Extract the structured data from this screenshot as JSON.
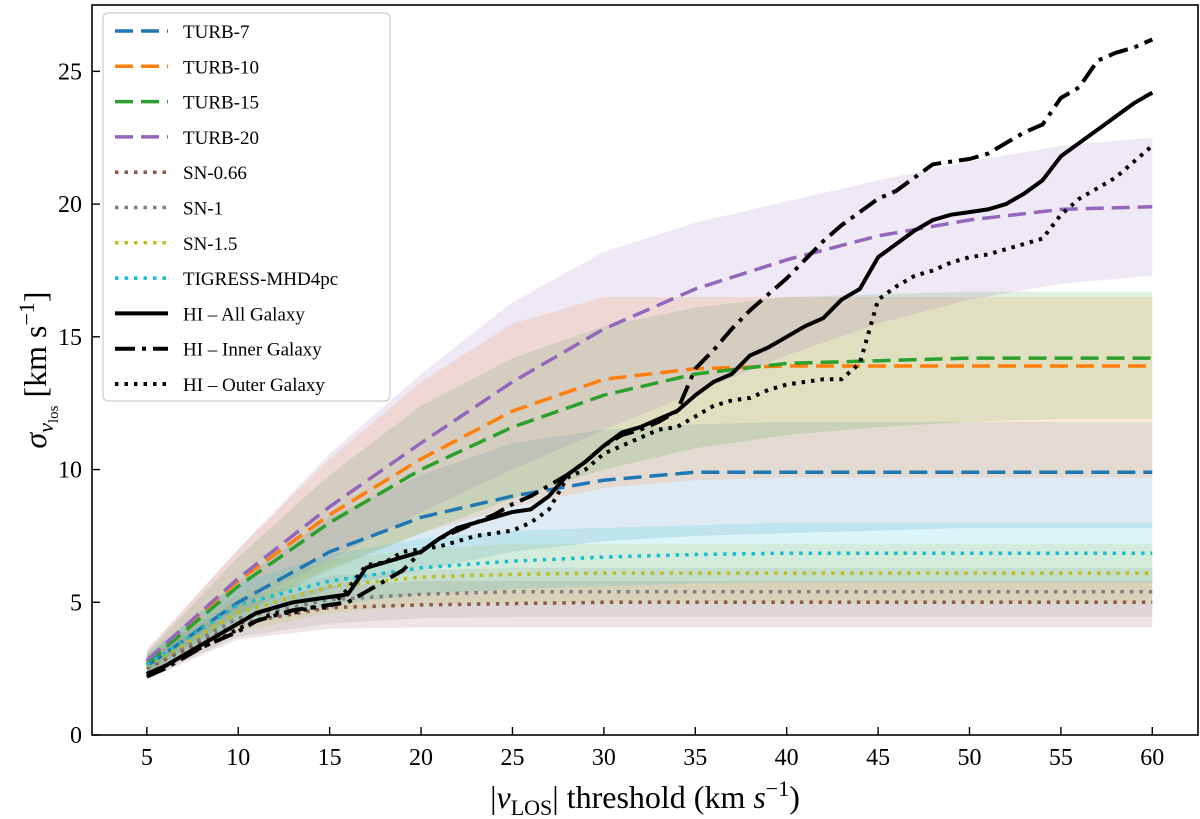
{
  "chart_data": {
    "type": "line",
    "title": "",
    "xlabel_parts": [
      "|",
      "v",
      "LOS",
      "| threshold (km ",
      "s",
      "−1",
      ")"
    ],
    "ylabel_parts": [
      "σ",
      "v",
      "los",
      " [km s",
      "−1",
      "]"
    ],
    "xlim": [
      2,
      62.5
    ],
    "ylim": [
      0,
      27.5
    ],
    "xticks": [
      5,
      10,
      15,
      20,
      25,
      30,
      35,
      40,
      45,
      50,
      55,
      60
    ],
    "yticks": [
      0,
      5,
      10,
      15,
      20,
      25
    ],
    "legend_position": "top-left",
    "series": [
      {
        "name": "TURB-7",
        "style": "dashed",
        "color": "#1f77b4",
        "x": [
          5,
          10,
          15,
          20,
          25,
          30,
          35,
          40,
          45,
          50,
          55,
          60
        ],
        "y": [
          2.6,
          5.0,
          6.9,
          8.2,
          9.0,
          9.6,
          9.9,
          9.9,
          9.9,
          9.9,
          9.9,
          9.9
        ],
        "band": {
          "lower": [
            2.2,
            4.2,
            5.5,
            6.2,
            6.9,
            7.3,
            7.5,
            7.6,
            7.7,
            7.8,
            7.8,
            7.8
          ],
          "upper": [
            3.0,
            5.8,
            8.2,
            9.8,
            11.0,
            11.5,
            11.7,
            11.8,
            11.8,
            11.8,
            11.8,
            11.8
          ]
        }
      },
      {
        "name": "TURB-10",
        "style": "dashed",
        "color": "#ff7f0e",
        "x": [
          5,
          10,
          15,
          20,
          25,
          30,
          35,
          40,
          45,
          50,
          55,
          60
        ],
        "y": [
          2.8,
          5.8,
          8.3,
          10.4,
          12.2,
          13.4,
          13.8,
          13.9,
          13.9,
          13.9,
          13.9,
          13.9
        ],
        "band": {
          "lower": [
            2.4,
            4.6,
            6.3,
            7.6,
            8.6,
            9.3,
            9.6,
            9.7,
            9.7,
            9.7,
            9.7,
            9.7
          ],
          "upper": [
            3.2,
            7.0,
            10.4,
            13.3,
            15.5,
            16.5,
            16.5,
            16.5,
            16.5,
            16.5,
            16.5,
            16.5
          ]
        }
      },
      {
        "name": "TURB-15",
        "style": "dashed",
        "color": "#2ca02c",
        "x": [
          5,
          10,
          15,
          20,
          25,
          30,
          35,
          40,
          45,
          50,
          55,
          60
        ],
        "y": [
          2.7,
          5.6,
          8.0,
          10.0,
          11.6,
          12.8,
          13.6,
          14.0,
          14.1,
          14.2,
          14.2,
          14.2
        ],
        "band": {
          "lower": [
            2.3,
            4.5,
            6.2,
            7.6,
            8.9,
            10.0,
            10.8,
            11.3,
            11.6,
            11.8,
            11.9,
            11.9
          ],
          "upper": [
            3.1,
            6.7,
            9.8,
            12.4,
            14.2,
            15.4,
            16.1,
            16.5,
            16.6,
            16.7,
            16.7,
            16.7
          ]
        }
      },
      {
        "name": "TURB-20",
        "style": "dashed",
        "color": "#9467bd",
        "x": [
          5,
          10,
          15,
          20,
          25,
          30,
          35,
          40,
          45,
          50,
          55,
          60
        ],
        "y": [
          2.8,
          5.9,
          8.6,
          11.0,
          13.3,
          15.3,
          16.8,
          17.9,
          18.8,
          19.4,
          19.8,
          19.9
        ],
        "band": {
          "lower": [
            2.4,
            4.8,
            6.6,
            8.4,
            10.0,
            11.5,
            12.9,
            14.3,
            15.5,
            16.4,
            17.0,
            17.3
          ],
          "upper": [
            3.2,
            7.0,
            10.6,
            13.6,
            16.3,
            18.2,
            19.3,
            20.1,
            20.9,
            21.6,
            22.2,
            22.5
          ]
        }
      },
      {
        "name": "SN-0.66",
        "style": "dotted",
        "color": "#8c564b",
        "x": [
          5,
          10,
          15,
          20,
          25,
          30,
          35,
          40,
          45,
          50,
          55,
          60
        ],
        "y": [
          2.5,
          4.2,
          4.8,
          4.9,
          4.95,
          5.0,
          5.0,
          5.0,
          5.0,
          5.0,
          5.0,
          5.0
        ],
        "band": {
          "lower": [
            2.1,
            3.6,
            4.0,
            4.05,
            4.05,
            4.05,
            4.05,
            4.05,
            4.05,
            4.05,
            4.05,
            4.05
          ],
          "upper": [
            2.9,
            4.9,
            5.6,
            5.8,
            5.8,
            5.8,
            5.8,
            5.8,
            5.8,
            5.8,
            5.8,
            5.8
          ]
        }
      },
      {
        "name": "SN-1",
        "style": "dotted",
        "color": "#7f7f7f",
        "x": [
          5,
          10,
          15,
          20,
          25,
          30,
          35,
          40,
          45,
          50,
          55,
          60
        ],
        "y": [
          2.55,
          4.4,
          5.1,
          5.3,
          5.4,
          5.4,
          5.4,
          5.4,
          5.4,
          5.4,
          5.4,
          5.4
        ],
        "band": {
          "lower": [
            2.15,
            3.7,
            4.2,
            4.4,
            4.45,
            4.45,
            4.45,
            4.45,
            4.45,
            4.45,
            4.45,
            4.45
          ],
          "upper": [
            2.95,
            5.1,
            6.0,
            6.2,
            6.3,
            6.3,
            6.3,
            6.3,
            6.3,
            6.3,
            6.3,
            6.3
          ]
        }
      },
      {
        "name": "SN-1.5",
        "style": "dotted",
        "color": "#bcbd22",
        "x": [
          5,
          10,
          15,
          20,
          25,
          30,
          35,
          40,
          45,
          50,
          55,
          60
        ],
        "y": [
          2.6,
          4.6,
          5.6,
          5.95,
          6.05,
          6.1,
          6.1,
          6.1,
          6.1,
          6.1,
          6.1,
          6.1
        ],
        "band": {
          "lower": [
            2.2,
            3.9,
            4.6,
            4.9,
            5.0,
            5.0,
            5.0,
            5.0,
            5.0,
            5.0,
            5.0,
            5.0
          ],
          "upper": [
            3.0,
            5.3,
            6.6,
            7.0,
            7.2,
            7.2,
            7.2,
            7.2,
            7.2,
            7.2,
            7.2,
            7.2
          ]
        }
      },
      {
        "name": "TIGRESS-MHD4pc",
        "style": "dotted",
        "color": "#17becf",
        "x": [
          5,
          10,
          15,
          20,
          25,
          30,
          35,
          40,
          45,
          50,
          55,
          60
        ],
        "y": [
          2.65,
          4.9,
          5.8,
          6.3,
          6.55,
          6.7,
          6.8,
          6.85,
          6.85,
          6.85,
          6.85,
          6.85
        ],
        "band": {
          "lower": [
            2.25,
            4.1,
            4.9,
            5.3,
            5.5,
            5.6,
            5.7,
            5.75,
            5.75,
            5.75,
            5.75,
            5.75
          ],
          "upper": [
            3.05,
            5.7,
            6.8,
            7.4,
            7.7,
            7.8,
            7.9,
            8.0,
            8.0,
            8.0,
            8.0,
            8.0
          ]
        }
      },
      {
        "name": "HI – All Galaxy",
        "style": "solid",
        "color": "#000000",
        "x": [
          5,
          6,
          7,
          8,
          9,
          10,
          11,
          12,
          13,
          14,
          15,
          16,
          17,
          18,
          19,
          20,
          21,
          22,
          23,
          24,
          25,
          26,
          27,
          28,
          29,
          30,
          31,
          32,
          33,
          34,
          35,
          36,
          37,
          38,
          39,
          40,
          41,
          42,
          43,
          44,
          45,
          46,
          47,
          48,
          49,
          50,
          51,
          52,
          53,
          54,
          55,
          56,
          57,
          58,
          59,
          60
        ],
        "y": [
          2.3,
          2.6,
          3.0,
          3.4,
          3.8,
          4.2,
          4.6,
          4.8,
          5.0,
          5.1,
          5.2,
          5.3,
          6.3,
          6.5,
          6.7,
          6.9,
          7.4,
          7.8,
          8.0,
          8.2,
          8.4,
          8.5,
          9.0,
          9.8,
          10.3,
          10.9,
          11.4,
          11.6,
          11.9,
          12.2,
          12.8,
          13.3,
          13.6,
          14.3,
          14.6,
          15.0,
          15.4,
          15.7,
          16.4,
          16.8,
          18.0,
          18.5,
          19.0,
          19.4,
          19.6,
          19.7,
          19.8,
          20.0,
          20.4,
          20.9,
          21.8,
          22.3,
          22.8,
          23.3,
          23.8,
          24.2
        ]
      },
      {
        "name": "HI – Inner Galaxy",
        "style": "dashdot",
        "color": "#000000",
        "x": [
          5,
          6,
          7,
          8,
          9,
          10,
          11,
          12,
          13,
          14,
          15,
          16,
          17,
          18,
          19,
          20,
          21,
          22,
          23,
          24,
          25,
          26,
          27,
          28,
          29,
          30,
          31,
          32,
          33,
          34,
          35,
          36,
          37,
          38,
          39,
          40,
          41,
          42,
          43,
          44,
          45,
          46,
          47,
          48,
          49,
          50,
          51,
          52,
          53,
          54,
          55,
          56,
          57,
          58,
          59,
          60
        ],
        "y": [
          2.2,
          2.5,
          2.9,
          3.3,
          3.6,
          3.9,
          4.3,
          4.5,
          4.7,
          4.8,
          4.9,
          5.0,
          5.4,
          5.8,
          6.2,
          6.9,
          7.4,
          7.7,
          8.0,
          8.3,
          8.7,
          9.0,
          9.4,
          9.8,
          10.3,
          10.9,
          11.3,
          11.5,
          11.8,
          12.2,
          13.8,
          14.5,
          15.3,
          16.0,
          16.6,
          17.2,
          17.9,
          18.6,
          19.2,
          19.7,
          20.2,
          20.5,
          21.0,
          21.5,
          21.6,
          21.7,
          21.9,
          22.3,
          22.7,
          23.0,
          24.0,
          24.4,
          25.4,
          25.7,
          25.9,
          26.2
        ]
      },
      {
        "name": "HI – Outer Galaxy",
        "style": "dotted",
        "color": "#000000",
        "x": [
          5,
          6,
          7,
          8,
          9,
          10,
          11,
          12,
          13,
          14,
          15,
          16,
          17,
          18,
          19,
          20,
          21,
          22,
          23,
          24,
          25,
          26,
          27,
          28,
          29,
          30,
          31,
          32,
          33,
          34,
          35,
          36,
          37,
          38,
          39,
          40,
          41,
          42,
          43,
          44,
          45,
          46,
          47,
          48,
          49,
          50,
          51,
          52,
          53,
          54,
          55,
          56,
          57,
          58,
          59,
          60
        ],
        "y": [
          2.3,
          2.6,
          3.0,
          3.3,
          3.6,
          4.0,
          4.3,
          4.6,
          4.6,
          4.8,
          4.8,
          5.5,
          6.4,
          6.5,
          6.9,
          7.0,
          7.1,
          7.3,
          7.5,
          7.6,
          7.7,
          8.0,
          8.5,
          9.7,
          10.0,
          10.6,
          10.9,
          11.2,
          11.5,
          11.6,
          12.0,
          12.4,
          12.6,
          12.7,
          13.0,
          13.2,
          13.3,
          13.4,
          13.4,
          14.0,
          16.4,
          16.9,
          17.3,
          17.5,
          17.8,
          18.0,
          18.1,
          18.3,
          18.5,
          18.7,
          19.6,
          20.2,
          20.6,
          21.0,
          21.6,
          22.2
        ]
      }
    ]
  }
}
